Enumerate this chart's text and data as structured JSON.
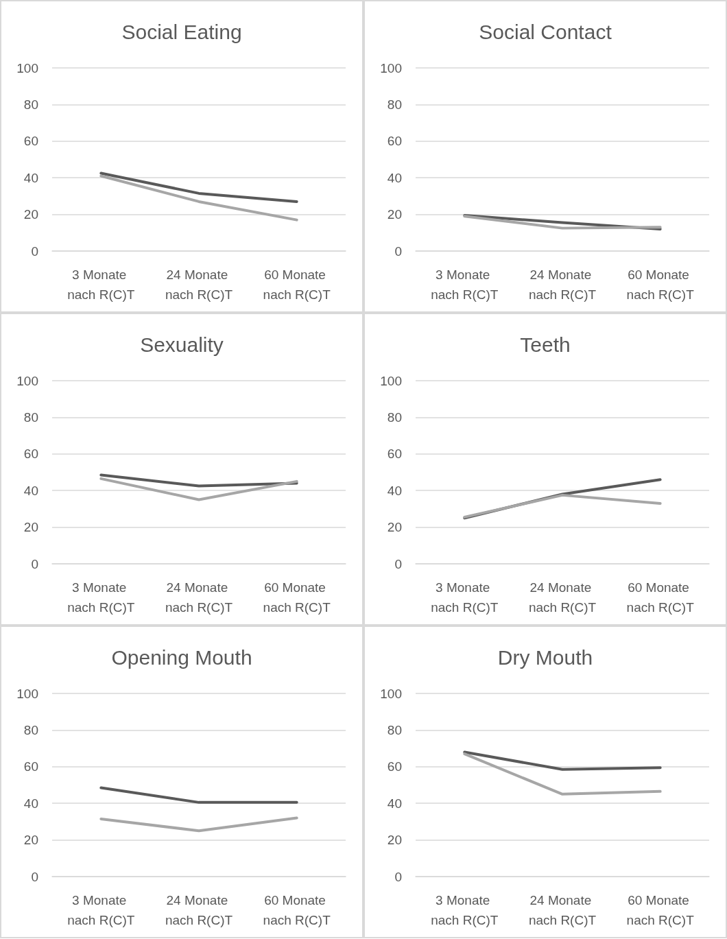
{
  "chart_data": [
    {
      "type": "line",
      "title": "Social Eating",
      "categories": [
        "3 Monate nach R(C)T",
        "24 Monate nach R(C)T",
        "60 Monate nach R(C)T"
      ],
      "series": [
        {
          "color": "#595959",
          "values": [
            42.5,
            31.5,
            27
          ]
        },
        {
          "color": "#a6a6a6",
          "values": [
            41,
            27,
            17
          ]
        }
      ],
      "ylim": [
        0,
        100
      ],
      "yticks": [
        0,
        20,
        40,
        60,
        80,
        100
      ],
      "grid": "y",
      "marker": "none",
      "line_style": "solid"
    },
    {
      "type": "line",
      "title": "Social Contact",
      "categories": [
        "3 Monate nach R(C)T",
        "24 Monate nach R(C)T",
        "60 Monate nach R(C)T"
      ],
      "series": [
        {
          "color": "#595959",
          "values": [
            19.5,
            15.5,
            12
          ]
        },
        {
          "color": "#a6a6a6",
          "values": [
            19,
            12.5,
            13
          ]
        }
      ],
      "ylim": [
        0,
        100
      ],
      "yticks": [
        0,
        20,
        40,
        60,
        80,
        100
      ],
      "grid": "y",
      "marker": "none",
      "line_style": "solid"
    },
    {
      "type": "line",
      "title": "Sexuality",
      "categories": [
        "3 Monate nach R(C)T",
        "24 Monate nach R(C)T",
        "60 Monate nach R(C)T"
      ],
      "series": [
        {
          "color": "#595959",
          "values": [
            48.5,
            42.5,
            44
          ]
        },
        {
          "color": "#a6a6a6",
          "values": [
            46.5,
            35,
            45
          ]
        }
      ],
      "ylim": [
        0,
        100
      ],
      "yticks": [
        0,
        20,
        40,
        60,
        80,
        100
      ],
      "grid": "y",
      "marker": "none",
      "line_style": "solid"
    },
    {
      "type": "line",
      "title": "Teeth",
      "categories": [
        "3 Monate nach R(C)T",
        "24 Monate nach R(C)T",
        "60 Monate nach R(C)T"
      ],
      "series": [
        {
          "color": "#595959",
          "values": [
            25,
            38,
            46
          ]
        },
        {
          "color": "#a6a6a6",
          "values": [
            25.5,
            37.5,
            33
          ]
        }
      ],
      "ylim": [
        0,
        100
      ],
      "yticks": [
        0,
        20,
        40,
        60,
        80,
        100
      ],
      "grid": "y",
      "marker": "none",
      "line_style": "solid"
    },
    {
      "type": "line",
      "title": "Opening Mouth",
      "categories": [
        "3 Monate nach R(C)T",
        "24 Monate nach R(C)T",
        "60 Monate nach R(C)T"
      ],
      "series": [
        {
          "color": "#595959",
          "values": [
            48.5,
            40.5,
            40.5
          ]
        },
        {
          "color": "#a6a6a6",
          "values": [
            31.5,
            25,
            32
          ]
        }
      ],
      "ylim": [
        0,
        100
      ],
      "yticks": [
        0,
        20,
        40,
        60,
        80,
        100
      ],
      "grid": "y",
      "marker": "none",
      "line_style": "solid"
    },
    {
      "type": "line",
      "title": "Dry Mouth",
      "categories": [
        "3 Monate nach R(C)T",
        "24 Monate nach R(C)T",
        "60 Monate nach R(C)T"
      ],
      "series": [
        {
          "color": "#595959",
          "values": [
            68,
            58.5,
            59.5
          ]
        },
        {
          "color": "#a6a6a6",
          "values": [
            67,
            45,
            46.5
          ]
        }
      ],
      "ylim": [
        0,
        100
      ],
      "yticks": [
        0,
        20,
        40,
        60,
        80,
        100
      ],
      "grid": "y",
      "marker": "none",
      "line_style": "solid"
    }
  ]
}
